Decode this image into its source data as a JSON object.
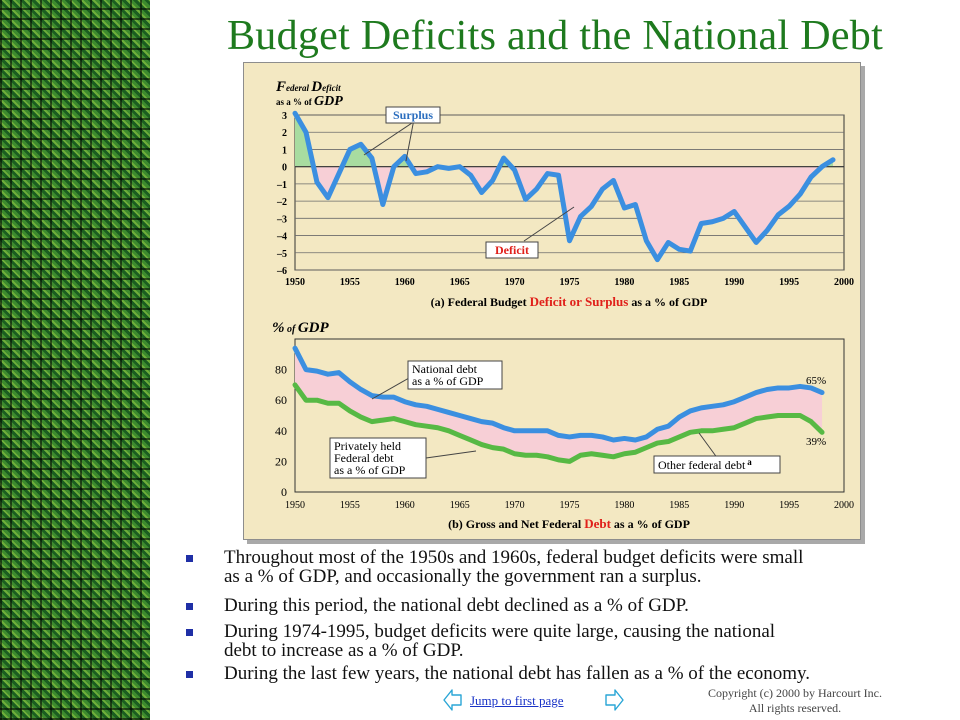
{
  "title": "Budget Deficits and the National Debt",
  "colors": {
    "title": "#1e7a1e",
    "panel_bg": "#f3e8c2",
    "line_blue": "#3b8fe0",
    "line_green": "#57b944",
    "fill_pink": "#f7cfd6",
    "fill_green": "#a8dca0",
    "red_text": "#e0201a",
    "bullet": "#1f2fa6",
    "link": "#1a33c7"
  },
  "chart_data": [
    {
      "type": "line",
      "title": "(a) Federal Budget Deficit or Surplus as a % of GDP",
      "title_parts": [
        "(a) Federal Budget ",
        "Deficit or Surplus",
        " as a % of GDP"
      ],
      "ylabel_parts": [
        "F",
        "ederal ",
        "D",
        "eficit"
      ],
      "ylabel_sub": [
        "as a % of ",
        "GDP"
      ],
      "xlim": [
        1950,
        2000
      ],
      "ylim": [
        -6,
        3
      ],
      "x_ticks": [
        "1950",
        "1955",
        "1960",
        "1965",
        "1970",
        "1975",
        "1980",
        "1985",
        "1990",
        "1995",
        "2000"
      ],
      "y_ticks": [
        "3",
        "2",
        "1",
        "0",
        "–1",
        "–2",
        "–3",
        "–4",
        "–5",
        "–6"
      ],
      "callouts": {
        "surplus": "Surplus",
        "deficit": "Deficit"
      },
      "series": [
        {
          "x": [
            1950,
            1951,
            1952,
            1953,
            1954,
            1955,
            1956,
            1957,
            1958,
            1959,
            1960,
            1961,
            1962,
            1963,
            1964,
            1965,
            1966,
            1967,
            1968,
            1969,
            1970,
            1971,
            1972,
            1973,
            1974,
            1975,
            1976,
            1977,
            1978,
            1979,
            1980,
            1981,
            1982,
            1983,
            1984,
            1985,
            1986,
            1987,
            1988,
            1989,
            1990,
            1991,
            1992,
            1993,
            1994,
            1995,
            1996,
            1997,
            1998,
            1999
          ],
          "values": [
            3.1,
            2.0,
            -0.9,
            -1.8,
            -0.4,
            1.0,
            1.3,
            0.5,
            -2.2,
            0.0,
            0.6,
            -0.4,
            -0.3,
            0.0,
            -0.1,
            0.0,
            -0.5,
            -1.5,
            -0.8,
            0.5,
            -0.2,
            -1.9,
            -1.3,
            -0.4,
            -0.5,
            -4.3,
            -2.9,
            -2.3,
            -1.3,
            -0.8,
            -2.4,
            -2.2,
            -4.3,
            -5.4,
            -4.4,
            -4.8,
            -4.9,
            -3.3,
            -3.2,
            -3.0,
            -2.6,
            -3.5,
            -4.4,
            -3.7,
            -2.8,
            -2.3,
            -1.6,
            -0.6,
            0.0,
            0.4
          ]
        }
      ]
    },
    {
      "type": "line",
      "title": "(b) Gross and Net Federal Debt as a % of GDP",
      "title_parts": [
        "(b) Gross and Net Federal ",
        "Debt",
        " as a % of GDP"
      ],
      "ylabel_parts": [
        "%",
        " of ",
        "GDP"
      ],
      "xlim": [
        1950,
        2000
      ],
      "ylim": [
        0,
        100
      ],
      "x_ticks": [
        "1950",
        "1955",
        "1960",
        "1965",
        "1970",
        "1975",
        "1980",
        "1985",
        "1990",
        "1995",
        "2000"
      ],
      "y_ticks": [
        "80",
        "60",
        "40",
        "20",
        "0"
      ],
      "callouts": {
        "national_debt": [
          "National debt",
          "as a % of GDP"
        ],
        "privately_held": [
          "Privately held",
          "Federal debt",
          "as a % of GDP"
        ],
        "other_debt": "Other federal debt",
        "other_debt_sup": "a"
      },
      "end_labels": {
        "gross": "65%",
        "net": "39%"
      },
      "series": [
        {
          "name": "National debt as a % of GDP",
          "x": [
            1950,
            1951,
            1952,
            1953,
            1954,
            1955,
            1956,
            1957,
            1958,
            1959,
            1960,
            1961,
            1962,
            1963,
            1964,
            1965,
            1966,
            1967,
            1968,
            1969,
            1970,
            1971,
            1972,
            1973,
            1974,
            1975,
            1976,
            1977,
            1978,
            1979,
            1980,
            1981,
            1982,
            1983,
            1984,
            1985,
            1986,
            1987,
            1988,
            1989,
            1990,
            1991,
            1992,
            1993,
            1994,
            1995,
            1996,
            1997,
            1998
          ],
          "values": [
            94,
            80,
            79,
            77,
            78,
            72,
            67,
            63,
            62,
            62,
            59,
            57,
            56,
            54,
            52,
            50,
            48,
            46,
            45,
            42,
            40,
            40,
            40,
            40,
            37,
            36,
            37,
            37,
            36,
            34,
            35,
            34,
            36,
            41,
            43,
            49,
            53,
            55,
            56,
            57,
            59,
            62,
            65,
            67,
            68,
            68,
            69,
            68,
            65
          ]
        },
        {
          "name": "Privately held Federal debt as a % of GDP",
          "x": [
            1950,
            1951,
            1952,
            1953,
            1954,
            1955,
            1956,
            1957,
            1958,
            1959,
            1960,
            1961,
            1962,
            1963,
            1964,
            1965,
            1966,
            1967,
            1968,
            1969,
            1970,
            1971,
            1972,
            1973,
            1974,
            1975,
            1976,
            1977,
            1978,
            1979,
            1980,
            1981,
            1982,
            1983,
            1984,
            1985,
            1986,
            1987,
            1988,
            1989,
            1990,
            1991,
            1992,
            1993,
            1994,
            1995,
            1996,
            1997,
            1998
          ],
          "values": [
            70,
            60,
            60,
            58,
            58,
            53,
            49,
            46,
            47,
            48,
            46,
            44,
            43,
            42,
            40,
            37,
            34,
            31,
            29,
            28,
            25,
            24,
            24,
            23,
            21,
            20,
            24,
            25,
            24,
            23,
            25,
            26,
            29,
            32,
            33,
            36,
            39,
            40,
            40,
            41,
            42,
            45,
            48,
            49,
            50,
            50,
            50,
            46,
            39
          ]
        }
      ]
    }
  ],
  "bullets": [
    [
      "Throughout most of the 1950s and 1960s, federal budget deficits were small",
      "as a % of GDP, and occasionally the government ran a surplus."
    ],
    [
      "During this period, the national debt declined as a % of GDP."
    ],
    [
      "During 1974-1995, budget deficits were quite large, causing the national",
      "debt to increase as a % of GDP."
    ],
    [
      "During the last few years, the national debt has fallen as a % of the economy."
    ]
  ],
  "nav": {
    "jump_label": "Jump to first page"
  },
  "copyright": [
    "Copyright (c) 2000 by Harcourt Inc.",
    "All rights reserved."
  ]
}
